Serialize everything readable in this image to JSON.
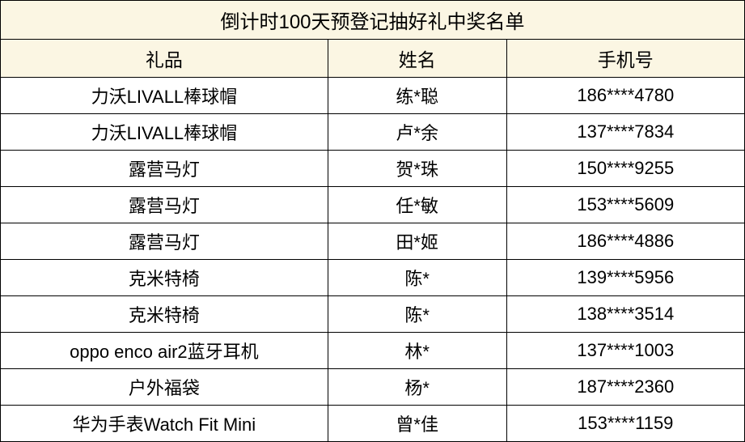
{
  "title": "倒计时100天预登记抽好礼中奖名单",
  "columns": [
    "礼品",
    "姓名",
    "手机号"
  ],
  "rows": [
    [
      "力沃LIVALL棒球帽",
      "练*聪",
      "186****4780"
    ],
    [
      "力沃LIVALL棒球帽",
      "卢*余",
      "137****7834"
    ],
    [
      "露营马灯",
      "贺*珠",
      "150****9255"
    ],
    [
      "露营马灯",
      "任*敏",
      "153****5609"
    ],
    [
      "露营马灯",
      "田*姬",
      "186****4886"
    ],
    [
      "克米特椅",
      "陈*",
      "139****5956"
    ],
    [
      "克米特椅",
      "陈*",
      "138****3514"
    ],
    [
      "oppo enco air2蓝牙耳机",
      "林*",
      "137****1003"
    ],
    [
      "户外福袋",
      "杨*",
      "187****2360"
    ],
    [
      "华为手表Watch Fit Mini",
      "曾*佳",
      "153****1159"
    ]
  ],
  "style": {
    "title_bg": "#fbf6e3",
    "header_bg": "#fbf6e3",
    "cell_bg": "#ffffff",
    "border_color": "#000000",
    "title_fontsize": 24,
    "header_fontsize": 23,
    "cell_fontsize": 22,
    "col_widths_pct": [
      44,
      24,
      32
    ]
  }
}
